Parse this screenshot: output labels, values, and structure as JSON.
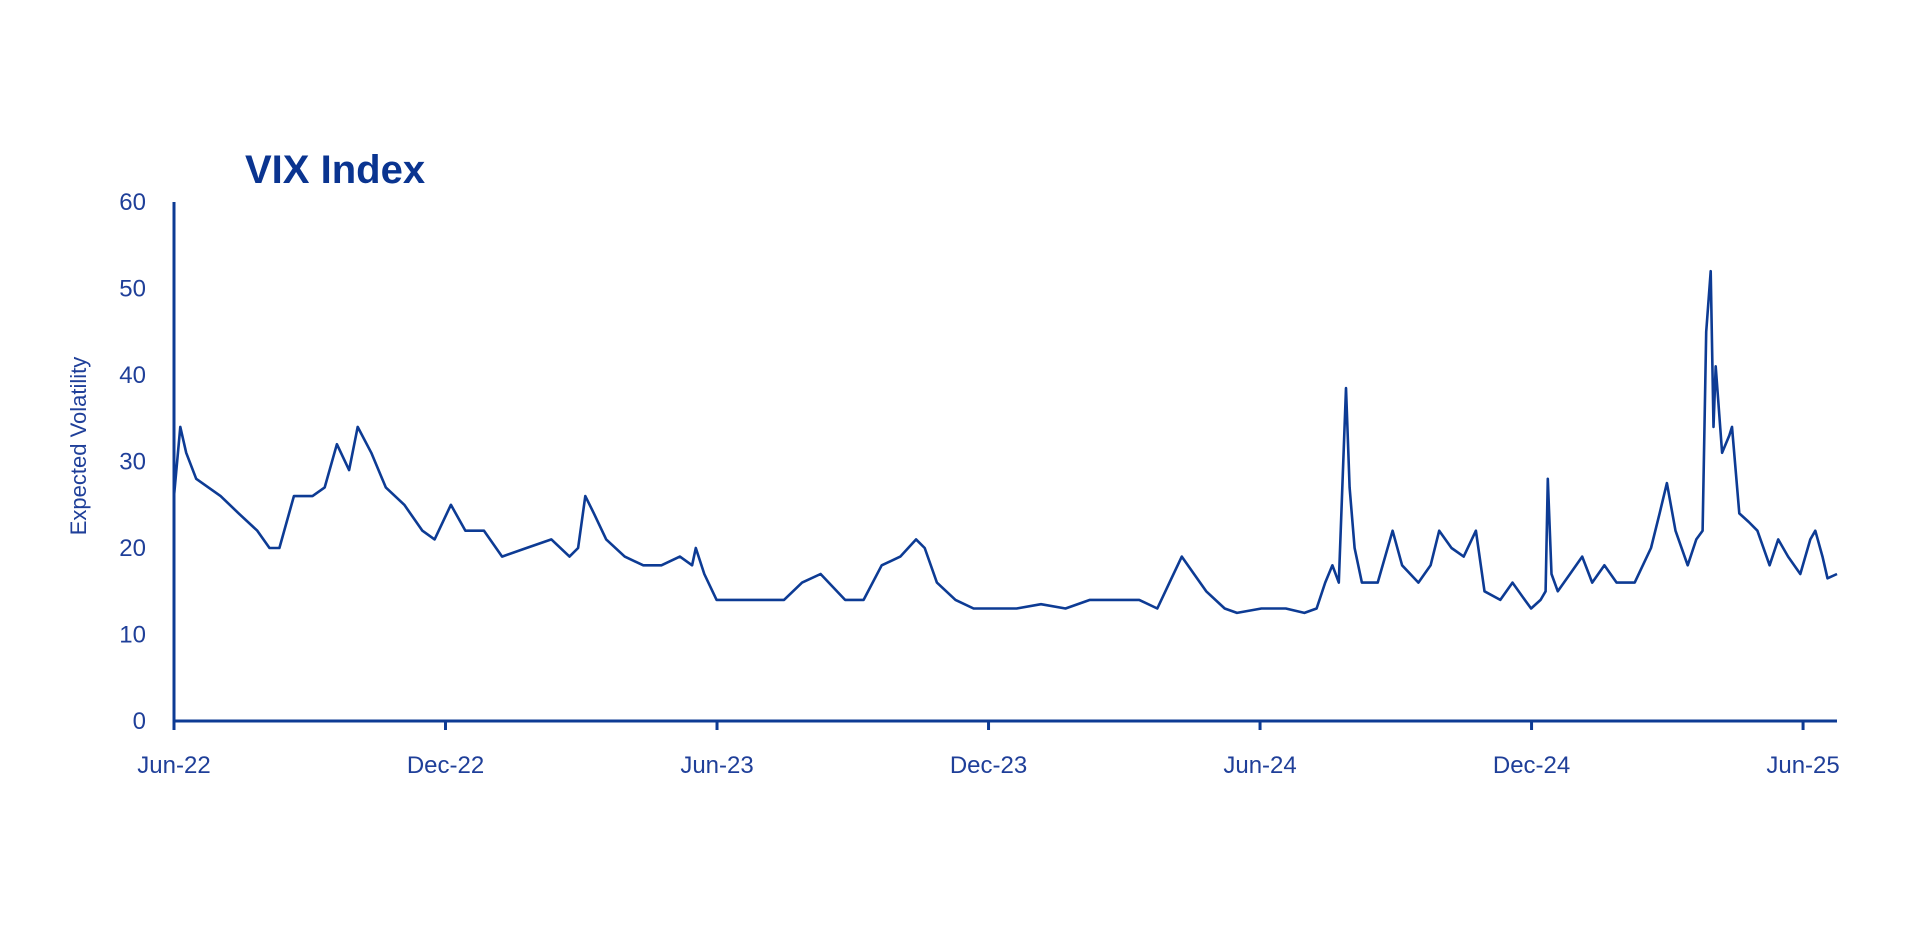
{
  "chart_data": {
    "type": "line",
    "title": "VIX Index",
    "xlabel": "",
    "ylabel": "Expected Volatility",
    "x_units": "months since Jun-22",
    "ylim": [
      0,
      60
    ],
    "xlim": [
      0,
      36.75
    ],
    "yticks": [
      "0",
      "10",
      "20",
      "30",
      "40",
      "50",
      "60"
    ],
    "xticks": [
      {
        "label": "Jun-22",
        "value": 0
      },
      {
        "label": "Dec-22",
        "value": 6
      },
      {
        "label": "Jun-23",
        "value": 12
      },
      {
        "label": "Dec-23",
        "value": 18
      },
      {
        "label": "Jun-24",
        "value": 24
      },
      {
        "label": "Dec-24",
        "value": 30
      },
      {
        "label": "Jun-25",
        "value": 36
      }
    ],
    "grid": false,
    "color": "#0d3b94",
    "series": [
      {
        "name": "VIX Index",
        "x": [
          0,
          0.14,
          0.27,
          0.49,
          0.76,
          1.03,
          1.43,
          1.84,
          2.11,
          2.33,
          2.65,
          3.06,
          3.33,
          3.6,
          3.87,
          4.06,
          4.36,
          4.68,
          5.09,
          5.49,
          5.76,
          6.12,
          6.44,
          6.85,
          7.25,
          7.79,
          8.34,
          8.74,
          8.93,
          9.09,
          9.28,
          9.55,
          9.96,
          10.37,
          10.77,
          11.18,
          11.45,
          11.53,
          11.72,
          11.99,
          12.39,
          12.94,
          13.48,
          13.88,
          14.29,
          14.83,
          15.24,
          15.64,
          16.05,
          16.4,
          16.59,
          16.86,
          17.27,
          17.67,
          18.08,
          18.62,
          19.16,
          19.7,
          20.24,
          20.78,
          21.33,
          21.73,
          22.0,
          22.27,
          22.54,
          22.81,
          23.22,
          23.49,
          24.03,
          24.57,
          24.98,
          25.25,
          25.44,
          25.6,
          25.74,
          25.9,
          25.98,
          26.09,
          26.25,
          26.6,
          26.93,
          27.14,
          27.5,
          27.77,
          27.96,
          28.23,
          28.5,
          28.77,
          28.96,
          29.31,
          29.58,
          29.85,
          29.99,
          30.2,
          30.31,
          30.36,
          30.44,
          30.58,
          30.85,
          31.12,
          31.34,
          31.61,
          31.88,
          32.28,
          32.64,
          32.83,
          32.99,
          33.18,
          33.45,
          33.64,
          33.78,
          33.86,
          33.96,
          34.02,
          34.07,
          34.21,
          34.37,
          34.43,
          34.59,
          34.8,
          34.99,
          35.26,
          35.45,
          35.67,
          35.94,
          36.16,
          36.27,
          36.43,
          36.54,
          36.75
        ],
        "y": [
          26,
          34,
          31,
          28,
          27,
          26,
          24,
          22,
          20,
          20,
          26,
          26,
          27,
          32,
          29,
          34,
          31,
          27,
          25,
          22,
          21,
          25,
          22,
          22,
          19,
          20,
          21,
          19,
          20,
          26,
          24,
          21,
          19,
          18,
          18,
          19,
          18,
          20,
          17,
          14,
          14,
          14,
          14,
          16,
          17,
          14,
          14,
          18,
          19,
          21,
          20,
          16,
          14,
          13,
          13,
          13,
          13.5,
          13,
          14,
          14,
          14,
          13,
          16,
          19,
          17,
          15,
          13,
          12.5,
          13,
          13,
          12.5,
          13,
          16,
          18,
          16,
          38.5,
          27,
          20,
          16,
          16,
          22,
          18,
          16,
          18,
          22,
          20,
          19,
          22,
          15,
          14,
          16,
          14,
          13,
          14,
          15,
          28,
          17,
          15,
          17,
          19,
          16,
          18,
          16,
          16,
          20,
          24,
          27.5,
          22,
          18,
          21,
          22,
          45,
          52,
          34,
          41,
          31,
          33,
          34,
          24,
          23,
          22,
          18,
          21,
          19,
          17,
          21,
          22,
          19,
          16.5,
          17
        ]
      }
    ]
  }
}
